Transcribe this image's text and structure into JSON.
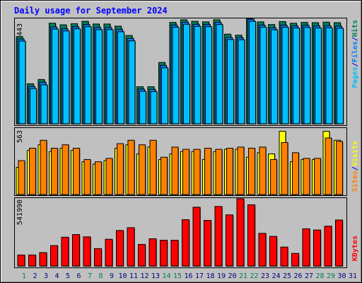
{
  "chart_data": [
    {
      "type": "bar",
      "panel": "hits-files-pages",
      "title": "Daily usage for September 2024",
      "y_max_label": "38443",
      "ylim": [
        0,
        38443
      ],
      "categories": [
        "1",
        "2",
        "3",
        "4",
        "5",
        "6",
        "7",
        "8",
        "9",
        "10",
        "11",
        "12",
        "13",
        "14",
        "15",
        "16",
        "17",
        "18",
        "19",
        "20",
        "21",
        "22",
        "23",
        "24",
        "25",
        "26",
        "27",
        "28",
        "29",
        "30"
      ],
      "series": [
        {
          "name": "Hits",
          "color": "#00805c",
          "values": [
            32700,
            15000,
            16600,
            37700,
            37100,
            37500,
            38400,
            37400,
            37400,
            36600,
            33100,
            13900,
            13900,
            23000,
            38000,
            39000,
            38400,
            38200,
            39000,
            33600,
            33200,
            40000,
            38200,
            37200,
            38300,
            37700,
            38000,
            37900,
            38100,
            37900
          ]
        },
        {
          "name": "Files",
          "color": "#0080ff",
          "values": [
            31800,
            14000,
            15600,
            36300,
            35600,
            36400,
            37200,
            36100,
            36100,
            35400,
            32000,
            13000,
            12900,
            21900,
            37000,
            38100,
            37300,
            37200,
            38000,
            32400,
            32300,
            39200,
            37000,
            36000,
            37000,
            36700,
            36900,
            36700,
            36800,
            36600
          ]
        },
        {
          "name": "Pages",
          "color": "#00c0ff",
          "values": [
            31000,
            13200,
            14600,
            35500,
            34800,
            35600,
            36400,
            35300,
            35300,
            34500,
            31100,
            12200,
            12100,
            21000,
            36200,
            37300,
            36500,
            36400,
            37200,
            31600,
            31500,
            38400,
            36200,
            35200,
            36200,
            35900,
            36100,
            35900,
            36000,
            35800
          ]
        }
      ],
      "legend": [
        "Pages",
        "/",
        "Files",
        "/",
        "Hits"
      ],
      "legend_colors": [
        "#00c0ff",
        "#0000ff",
        "#0080ff",
        "#0000ff",
        "#00805c"
      ]
    },
    {
      "type": "bar",
      "panel": "visits-sites",
      "y_max_label": "563",
      "ylim": [
        0,
        563
      ],
      "series": [
        {
          "name": "Visits",
          "color": "#ffff00",
          "values": [
            240,
            390,
            440,
            380,
            410,
            390,
            290,
            270,
            300,
            410,
            440,
            360,
            420,
            310,
            360,
            380,
            380,
            310,
            380,
            400,
            400,
            330,
            370,
            360,
            560,
            290,
            310,
            310,
            560,
            480
          ]
        },
        {
          "name": "Sites",
          "color": "#ff8000",
          "values": [
            300,
            410,
            480,
            410,
            440,
            410,
            310,
            290,
            320,
            450,
            480,
            440,
            480,
            330,
            420,
            400,
            400,
            410,
            400,
            410,
            420,
            410,
            420,
            310,
            460,
            370,
            320,
            320,
            500,
            470
          ]
        }
      ],
      "legend": [
        "Sites",
        "/",
        "Visits"
      ],
      "legend_colors": [
        "#ff8000",
        "#0000ff",
        "#ffff00"
      ]
    },
    {
      "type": "bar",
      "panel": "kbytes",
      "y_max_label": "541990",
      "ylim": [
        0,
        541990
      ],
      "series": [
        {
          "name": "KBytes",
          "color": "#ff0000",
          "values": [
            92000,
            92000,
            112000,
            170000,
            240000,
            262000,
            243000,
            145000,
            223000,
            296000,
            319000,
            180000,
            227000,
            215000,
            215000,
            386000,
            490000,
            380000,
            496000,
            426000,
            560000,
            510000,
            272000,
            247000,
            158000,
            105000,
            310000,
            300000,
            332000,
            383000
          ]
        }
      ],
      "legend": [
        "KBytes"
      ],
      "legend_colors": [
        "#ff0000"
      ]
    }
  ],
  "x_axis": {
    "labels": [
      "1",
      "2",
      "3",
      "4",
      "5",
      "6",
      "7",
      "8",
      "9",
      "10",
      "11",
      "12",
      "13",
      "14",
      "15",
      "16",
      "17",
      "18",
      "19",
      "20",
      "21",
      "22",
      "23",
      "24",
      "25",
      "26",
      "27",
      "28",
      "29",
      "30",
      "31"
    ],
    "weekend_days": [
      "1",
      "7",
      "8",
      "14",
      "15",
      "21",
      "22",
      "28",
      "29"
    ],
    "weekday_color": "#000080",
    "weekend_color": "#00805c"
  },
  "colors": {
    "background": "#c0c0c0",
    "title": "#0000ff",
    "separator": "#0000ff"
  }
}
